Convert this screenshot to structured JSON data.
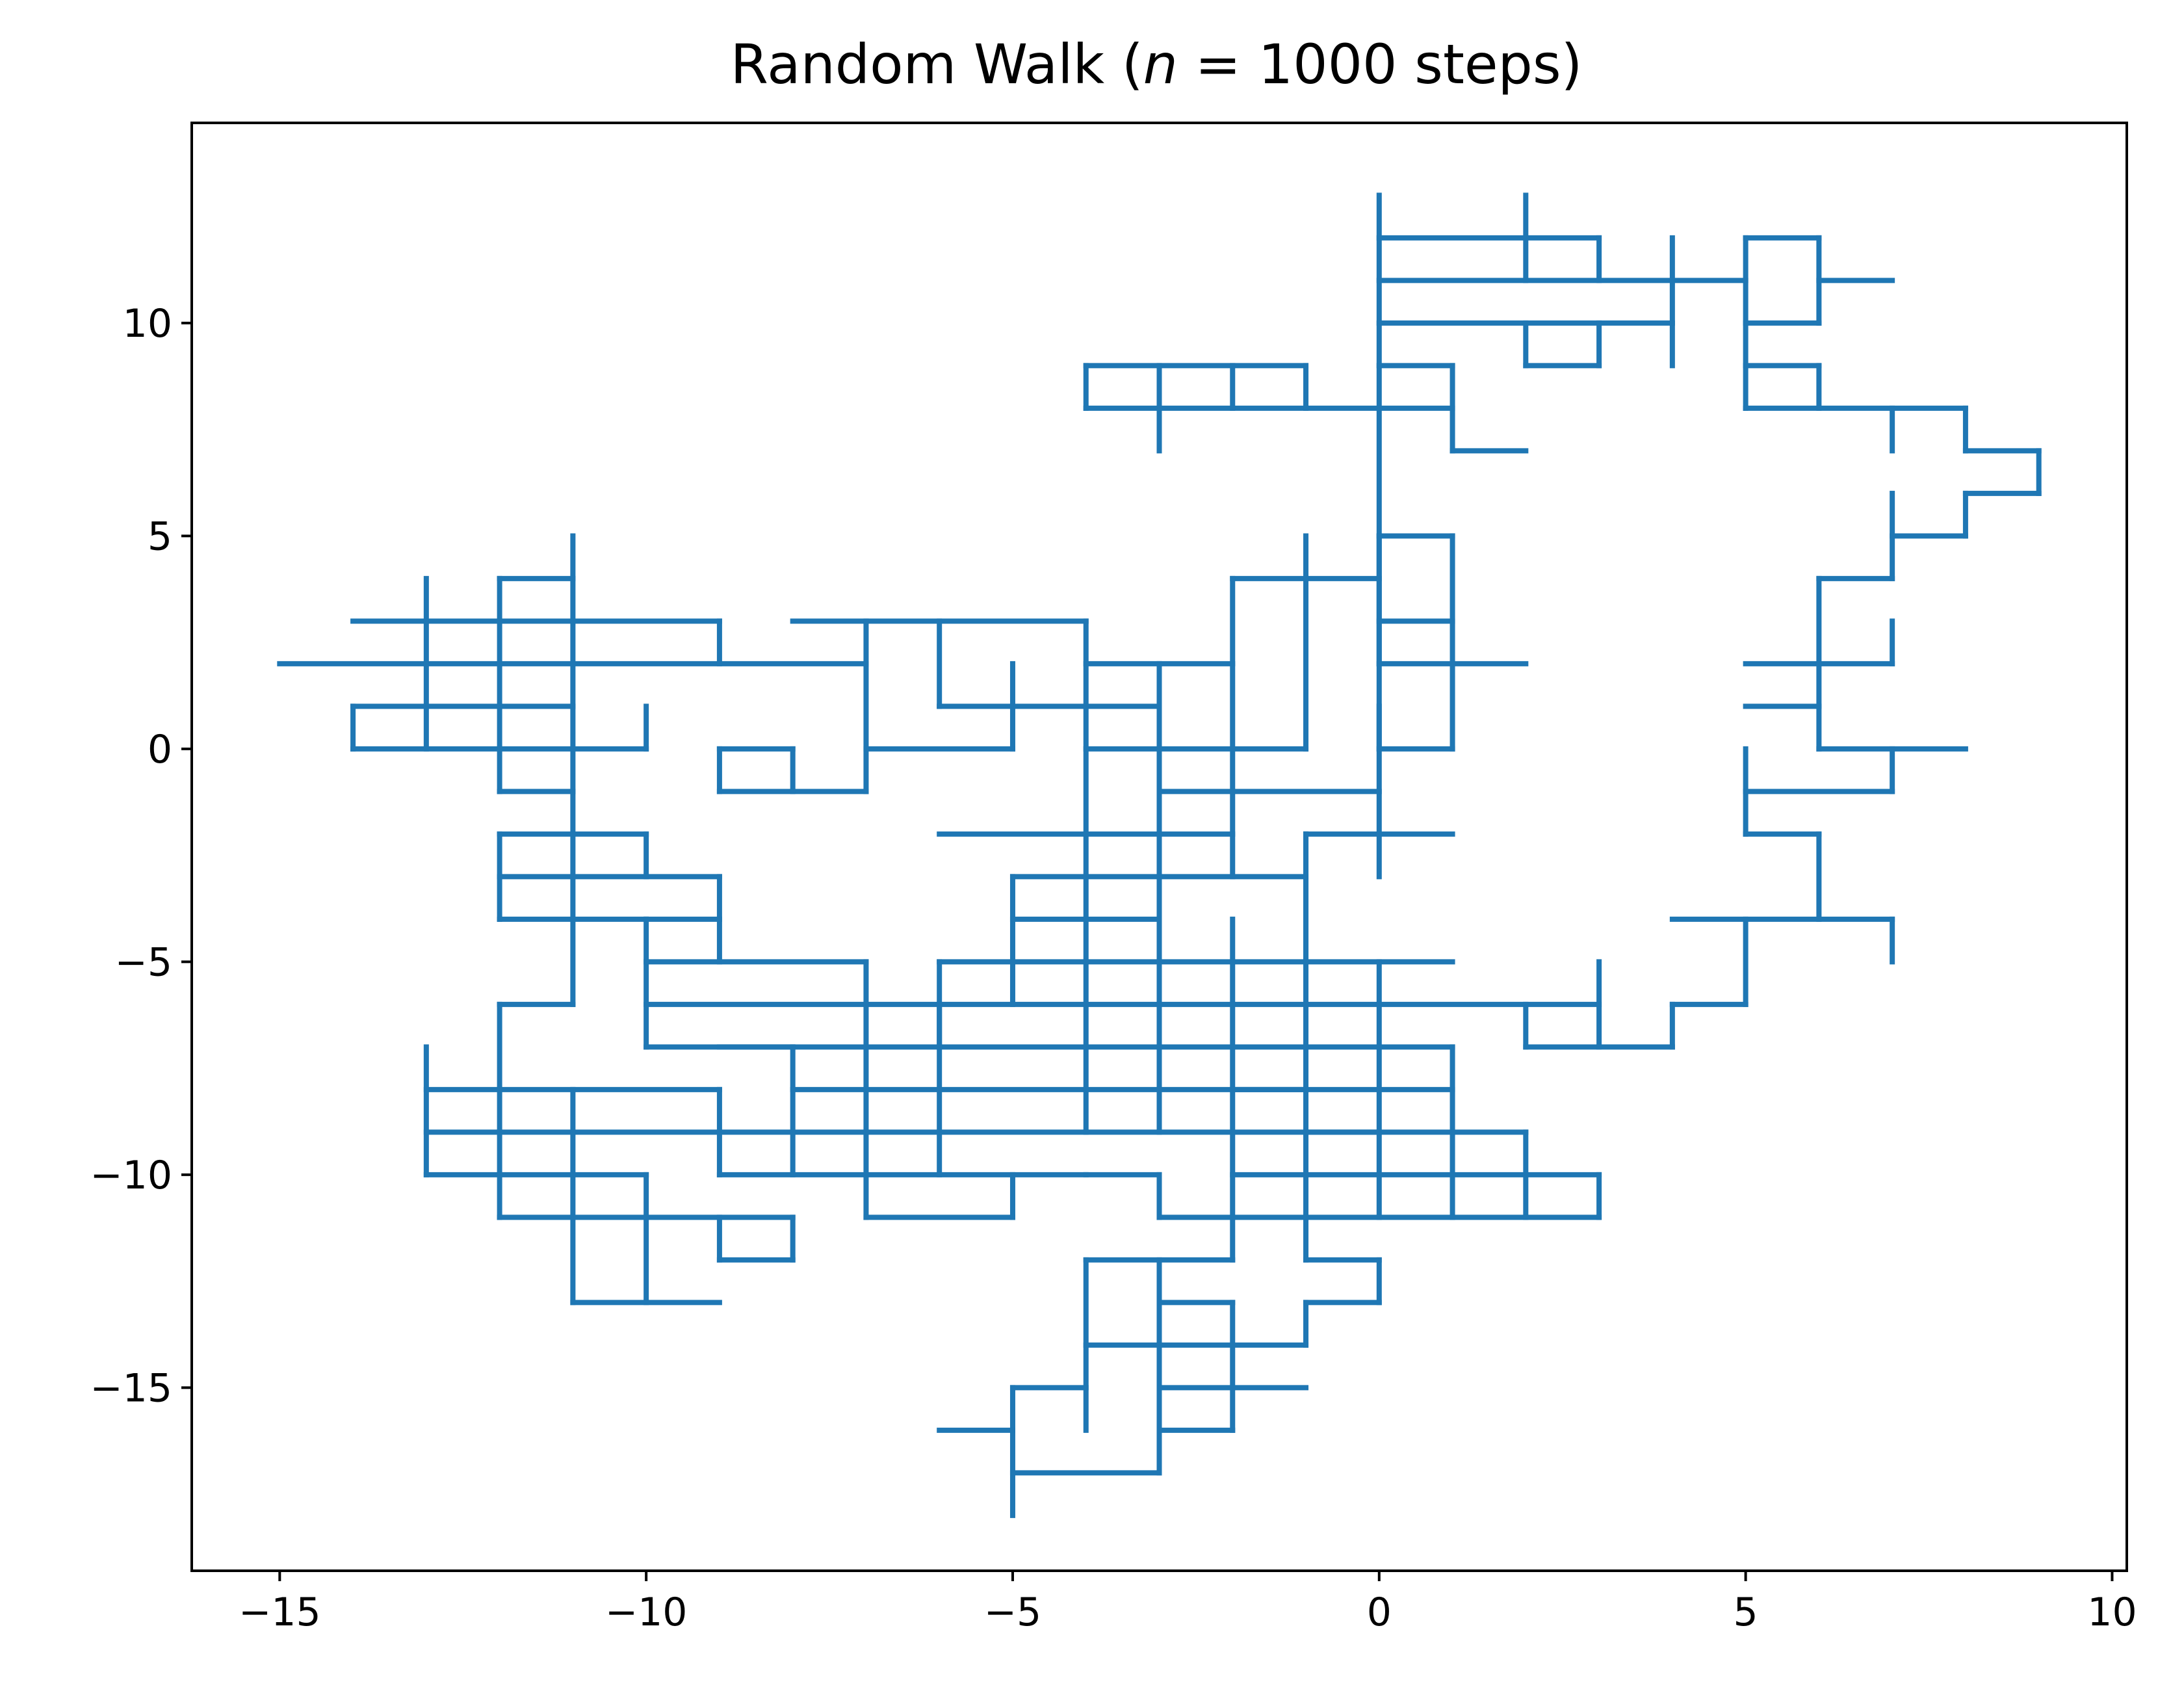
{
  "chart_data": {
    "type": "line",
    "title_parts": [
      "Random Walk (",
      "n",
      " = 1000 steps)"
    ],
    "xlabel": "",
    "ylabel": "",
    "xlim": [
      -16.2,
      10.2
    ],
    "ylim": [
      -19.3,
      14.7
    ],
    "xticks": [
      -15,
      -10,
      -5,
      0,
      5,
      10
    ],
    "yticks": [
      -15,
      -10,
      -5,
      0,
      5,
      10
    ],
    "xtick_labels": [
      "−15",
      "−10",
      "−5",
      "0",
      "5",
      "10"
    ],
    "ytick_labels": [
      "−15",
      "−10",
      "−5",
      "0",
      "5",
      "10"
    ],
    "grid": false,
    "line_color": "#1f77b4",
    "series": [
      {
        "x": [
          0,
          0,
          2,
          2,
          3,
          3,
          0,
          0,
          1,
          1,
          2,
          0,
          0,
          4,
          4,
          5,
          5,
          6,
          6,
          7,
          6,
          6,
          5,
          5,
          6,
          6,
          5,
          5,
          7,
          7,
          8,
          8,
          9,
          9,
          8,
          8,
          7,
          7,
          6,
          6,
          7,
          7,
          5,
          6,
          6,
          7,
          7,
          6,
          6,
          8,
          7,
          7,
          5,
          5,
          6,
          6,
          7,
          7,
          6,
          6,
          4,
          5,
          5,
          4,
          4,
          3,
          3,
          2,
          2,
          3,
          3,
          0,
          0,
          1,
          0,
          0,
          1,
          1,
          0,
          0,
          2,
          0,
          0,
          -1,
          -1,
          -2,
          -2,
          -3,
          -3,
          -4,
          -4,
          -4,
          -3,
          -3,
          -2,
          -2,
          -1,
          -1,
          -1,
          -2,
          -3,
          -3,
          -4,
          -5,
          -5,
          -6,
          -6,
          -5,
          -5,
          -7,
          -7,
          -6,
          -6,
          -4,
          -4,
          -2,
          -2,
          -4,
          -4,
          -3,
          -3,
          -1,
          -1,
          -2,
          -2,
          -3,
          -3,
          -5,
          -5,
          -4,
          -4,
          -3,
          -3,
          -1,
          -1,
          -4,
          -4,
          -2,
          -2,
          -3,
          -3,
          -6,
          -4,
          -4,
          -1,
          -1,
          0,
          0,
          0,
          -1,
          -1,
          -5,
          -5,
          -3,
          -3,
          -8,
          -8,
          -7,
          -7,
          -9,
          -9,
          -8,
          -8,
          -10,
          -10,
          -6,
          -6,
          -7,
          -7,
          -10,
          -10,
          -11,
          -11,
          -12,
          -12,
          -11,
          -11,
          -10,
          -10,
          -11,
          -11,
          -12,
          -12,
          -11,
          -11,
          -13,
          -13,
          -14,
          -14,
          -10,
          -10,
          -14,
          -14,
          -15,
          -9,
          -9,
          -13,
          -13,
          -11,
          -11,
          -12,
          -12,
          -11,
          -11,
          -9,
          -9,
          -7,
          -7,
          -6,
          -6,
          -5,
          -5,
          -4,
          -4,
          -3,
          -3,
          -2,
          -2,
          0,
          0,
          -1,
          -1,
          -2,
          -2,
          -1,
          -1,
          -3,
          -3,
          -2,
          -2,
          -1,
          -1,
          -3,
          -3,
          -5,
          -5,
          -6,
          -6,
          -5,
          -5,
          -4,
          -4,
          -3,
          -3,
          -4,
          -4,
          -5,
          -5,
          -7,
          -7,
          -9,
          -9,
          -10,
          -10,
          -5,
          -5,
          -4,
          -4,
          -1,
          -1,
          0,
          0,
          1,
          1,
          3,
          3,
          2,
          2,
          3,
          4,
          4,
          5,
          5,
          -10,
          -10,
          -8,
          -8,
          -7,
          -7,
          -3,
          -3,
          -4,
          -4,
          -5,
          -5,
          -6,
          -6,
          -9,
          -9,
          -12,
          -12,
          -13,
          -13,
          -11,
          -11,
          -10,
          -10,
          -11,
          -11,
          -9,
          -9,
          -8,
          -8,
          -9,
          -9,
          -12,
          -12,
          -11,
          -11,
          -13,
          -13,
          -9,
          -9,
          -7,
          -7,
          -5,
          -5,
          -3,
          -3,
          -1,
          -1,
          2,
          2,
          0,
          0,
          1,
          1,
          3,
          3,
          1,
          1,
          0,
          0,
          -2,
          -2,
          -1,
          -1,
          1,
          1,
          -1,
          -1,
          0,
          0,
          -1,
          -1,
          -2,
          -2,
          -3,
          -3,
          -1,
          -1,
          -2,
          -2,
          -3,
          -3,
          -4,
          -4,
          -5,
          -5,
          -6
        ]
      }
    ]
  }
}
